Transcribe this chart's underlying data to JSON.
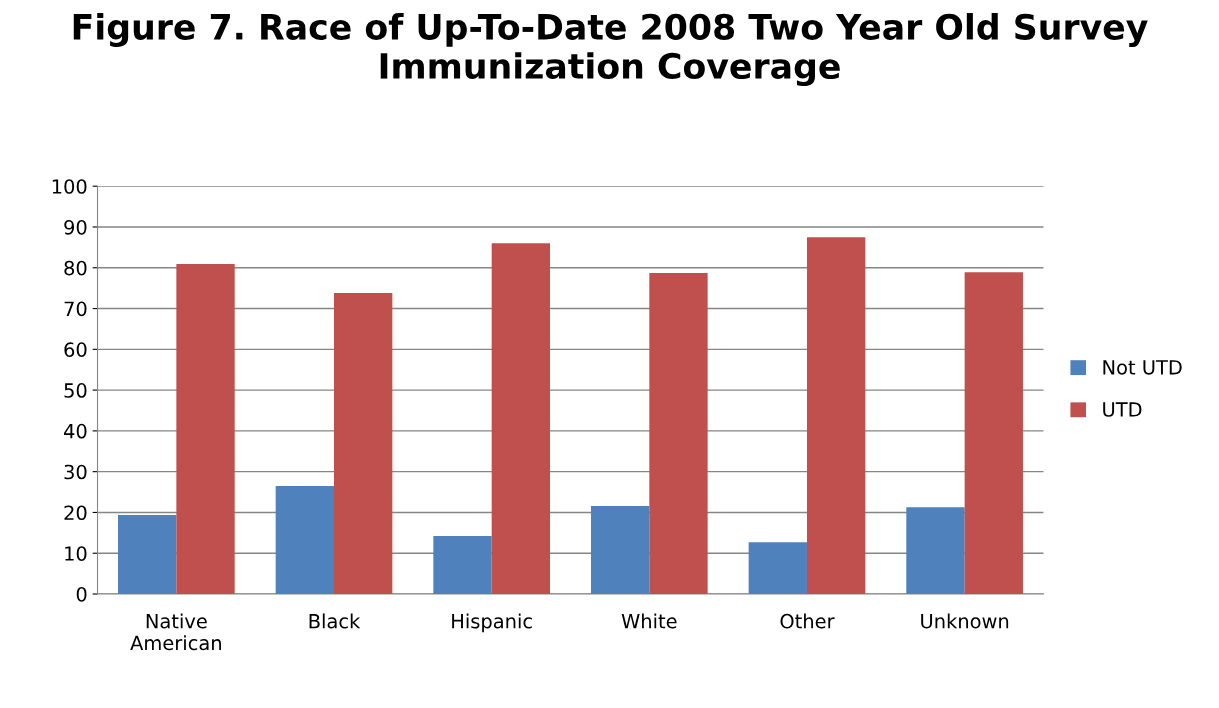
{
  "chart_data": {
    "type": "bar",
    "title": "Figure 7. Race of Up-To-Date 2008 Two Year Old Survey Immunization Coverage",
    "categories": [
      "Native American",
      "Black",
      "Hispanic",
      "White",
      "Other",
      "Unknown"
    ],
    "series": [
      {
        "name": "Not UTD",
        "color": "#4f81bd",
        "values": [
          19.4,
          26.5,
          14.2,
          21.6,
          12.7,
          21.3
        ]
      },
      {
        "name": "UTD",
        "color": "#c0504d",
        "values": [
          80.9,
          73.8,
          86.0,
          78.7,
          87.5,
          78.9
        ]
      }
    ],
    "ylim": [
      0,
      100
    ],
    "yticks": [
      0,
      10,
      20,
      30,
      40,
      50,
      60,
      70,
      80,
      90,
      100
    ],
    "grid": "y",
    "legend": "right"
  }
}
